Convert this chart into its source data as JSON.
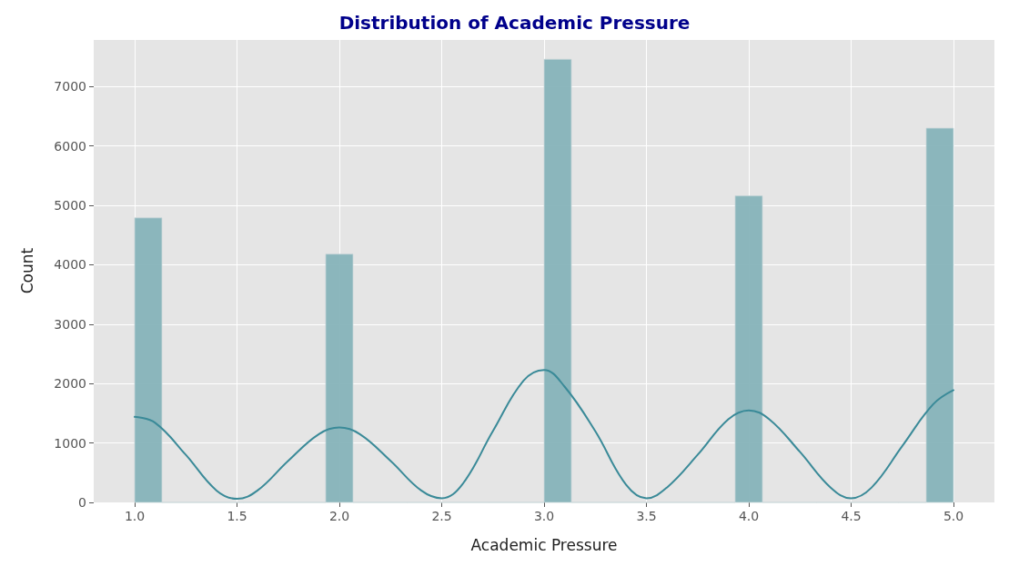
{
  "chart_data": {
    "type": "histogram",
    "title": "Distribution of Academic Pressure",
    "xlabel": "Academic Pressure",
    "ylabel": "Count",
    "bins": [
      1,
      1.1333,
      1.2667,
      1.4,
      1.5333,
      1.6667,
      1.8,
      1.9333,
      2.0667,
      2.2,
      2.3333,
      2.4667,
      2.6,
      2.7333,
      2.8667,
      3,
      3.1333,
      3.2667,
      3.4,
      3.5333,
      3.6667,
      3.8,
      3.9333,
      4.0667,
      4.2,
      4.3333,
      4.4667,
      4.6,
      4.7333,
      4.8667,
      5
    ],
    "series": [
      {
        "color": "#86b3b9",
        "values": [
          4790,
          0,
          0,
          0,
          0,
          0,
          0,
          4180,
          0,
          0,
          0,
          0,
          0,
          0,
          0,
          7460,
          0,
          0,
          0,
          0,
          0,
          0,
          5160,
          0,
          0,
          0,
          0,
          0,
          0,
          6300
        ]
      },
      {
        "type": "line",
        "color": "#3a8a98",
        "x": [
          1,
          1.1,
          1.25,
          1.4,
          1.5,
          1.6,
          1.75,
          1.9,
          2,
          2.1,
          2.25,
          2.4,
          2.5,
          2.6,
          2.75,
          2.9,
          3,
          3.1,
          3.25,
          3.4,
          3.5,
          3.6,
          3.75,
          3.9,
          4,
          4.1,
          4.25,
          4.4,
          4.5,
          4.6,
          4.75,
          4.9,
          5
        ],
        "values": [
          1440,
          1340,
          800,
          200,
          60,
          200,
          700,
          1150,
          1260,
          1150,
          700,
          200,
          70,
          300,
          1200,
          2050,
          2230,
          1950,
          1200,
          300,
          70,
          250,
          800,
          1400,
          1550,
          1400,
          850,
          250,
          70,
          250,
          950,
          1650,
          1890
        ]
      }
    ],
    "xlim": [
      0.8,
      5.2
    ],
    "xticks": [
      {
        "value": 1,
        "label": "1.0"
      },
      {
        "value": 1.5,
        "label": "1.5"
      },
      {
        "value": 2,
        "label": "2.0"
      },
      {
        "value": 2.5,
        "label": "2.5"
      },
      {
        "value": 3,
        "label": "3.0"
      },
      {
        "value": 3.5,
        "label": "3.5"
      },
      {
        "value": 4,
        "label": "4.0"
      },
      {
        "value": 4.5,
        "label": "4.5"
      },
      {
        "value": 5,
        "label": "5.0"
      }
    ],
    "ylim": [
      0,
      7800
    ],
    "yticks": [
      0,
      1000,
      2000,
      3000,
      4000,
      5000,
      6000,
      7000
    ],
    "grid": true,
    "marker": "none",
    "line_style": "solid"
  }
}
